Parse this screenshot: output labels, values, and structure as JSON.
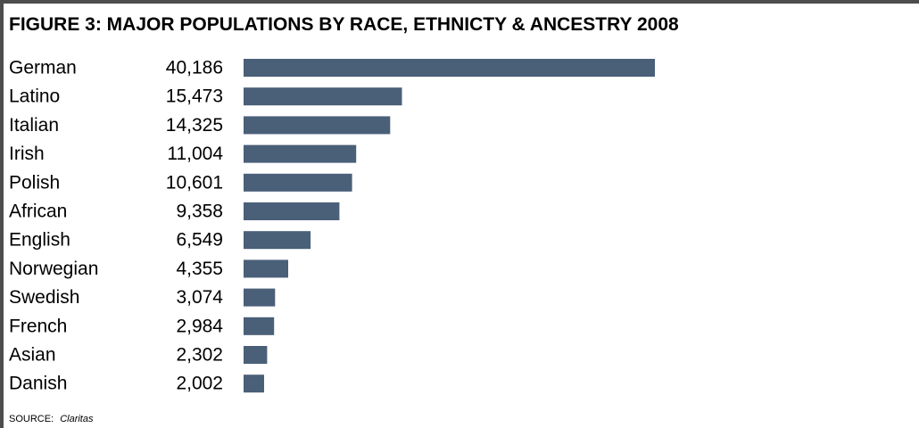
{
  "title": "FIGURE 3: MAJOR POPULATIONS BY RACE, ETHNICTY & ANCESTRY 2008",
  "source_label": "SOURCE:",
  "source_value": "Claritas",
  "colors": {
    "bar": "#4a5f78",
    "border": "#4d4d4d",
    "text": "#000000"
  },
  "chart_data": {
    "type": "bar",
    "orientation": "horizontal",
    "title": "FIGURE 3: MAJOR POPULATIONS BY RACE, ETHNICTY & ANCESTRY 2008",
    "categories": [
      "German",
      "Latino",
      "Italian",
      "Irish",
      "Polish",
      "African",
      "English",
      "Norwegian",
      "Swedish",
      "French",
      "Asian",
      "Danish"
    ],
    "values": [
      40186,
      15473,
      14325,
      11004,
      10601,
      9358,
      6549,
      4355,
      3074,
      2984,
      2302,
      2002
    ],
    "value_labels": [
      "40,186",
      "15,473",
      "14,325",
      "11,004",
      "10,601",
      "9,358",
      "6,549",
      "4,355",
      "3,074",
      "2,984",
      "2,302",
      "2,002"
    ],
    "xlabel": "",
    "ylabel": "",
    "grid": false,
    "legend": "none"
  }
}
